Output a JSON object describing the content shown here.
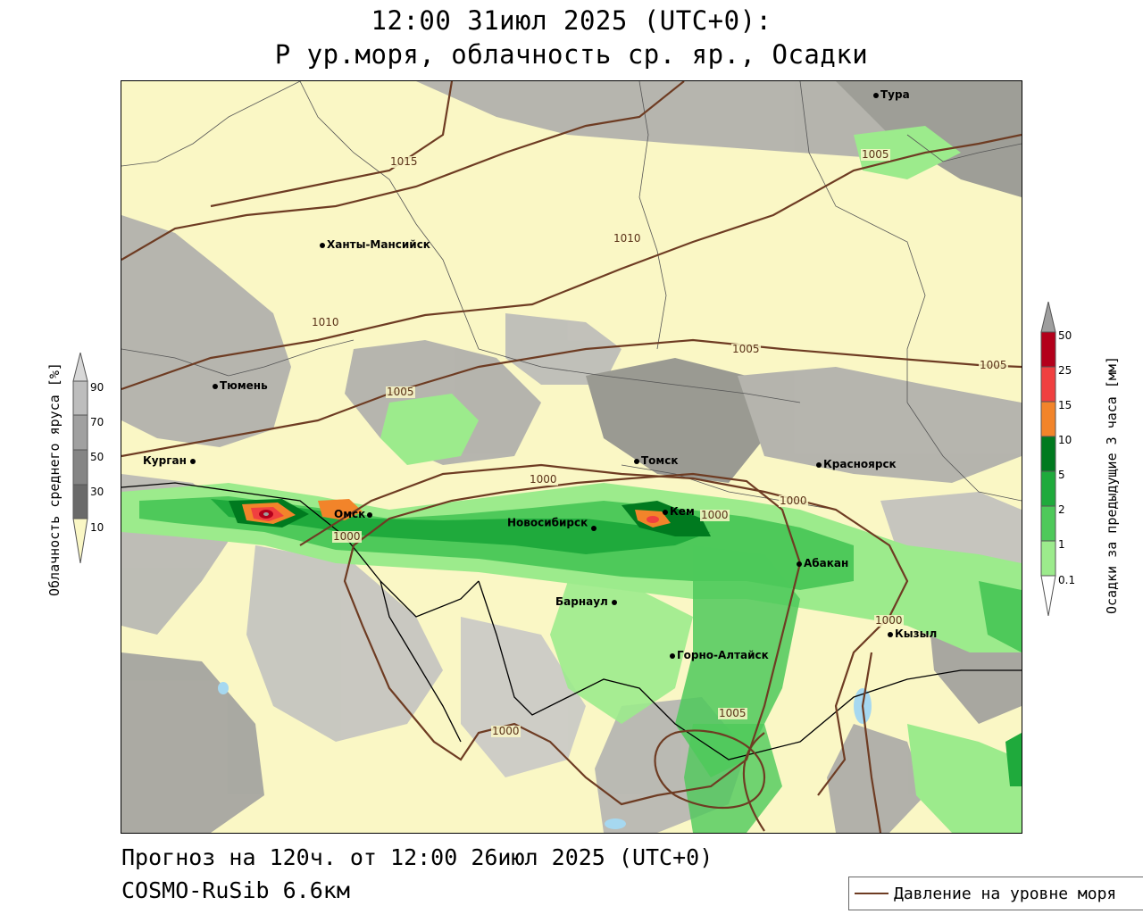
{
  "header": {
    "title_line1": "12:00 31июл 2025 (UTC+0):",
    "title_line2": "P ур.моря, облачность ср. яр., Осадки"
  },
  "footer": {
    "forecast": "Прогноз на 120ч. от 12:00 26июл 2025 (UTC+0)",
    "model": "COSMO-RuSib 6.6км"
  },
  "legend": {
    "pressure_label": "Давление на уровне моря",
    "pressure_color": "#6e3c23"
  },
  "cloud_colorbar": {
    "title": "Облачность среднего яруса [%]",
    "ticks": [
      "90",
      "70",
      "50",
      "30",
      "10"
    ],
    "colors": [
      "#d8d8d8",
      "#bdbdbd",
      "#a0a0a0",
      "#858585",
      "#6a6a6a",
      "#faf7c5"
    ]
  },
  "precip_colorbar": {
    "title": "Осадки за предыдущие 3 часа [мм]",
    "ticks": [
      "50",
      "25",
      "15",
      "10",
      "5",
      "2",
      "1",
      "0.1"
    ],
    "colors": [
      "#9e9e9e",
      "#b3001b",
      "#f04040",
      "#f2842a",
      "#007a1f",
      "#1faa3c",
      "#4ec95a",
      "#9ceb8c"
    ]
  },
  "cities": [
    {
      "name": "Тура"
    },
    {
      "name": "Ханты-Мансийск"
    },
    {
      "name": "Тюмень"
    },
    {
      "name": "Курган"
    },
    {
      "name": "Омск"
    },
    {
      "name": "Томск"
    },
    {
      "name": "Красноярск"
    },
    {
      "name": "Новосибирск"
    },
    {
      "name": "Кем"
    },
    {
      "name": "Абакан"
    },
    {
      "name": "Барнаул"
    },
    {
      "name": "Кызыл"
    },
    {
      "name": "Горно-Алтайск"
    }
  ],
  "isobars": [
    {
      "label": "1015"
    },
    {
      "label": "1010"
    },
    {
      "label": "1010"
    },
    {
      "label": "1005"
    },
    {
      "label": "1005"
    },
    {
      "label": "1005"
    },
    {
      "label": "1005"
    },
    {
      "label": "1000"
    },
    {
      "label": "1000"
    },
    {
      "label": "1000"
    },
    {
      "label": "1000"
    },
    {
      "label": "1000"
    },
    {
      "label": "1000"
    },
    {
      "label": "1005"
    }
  ]
}
